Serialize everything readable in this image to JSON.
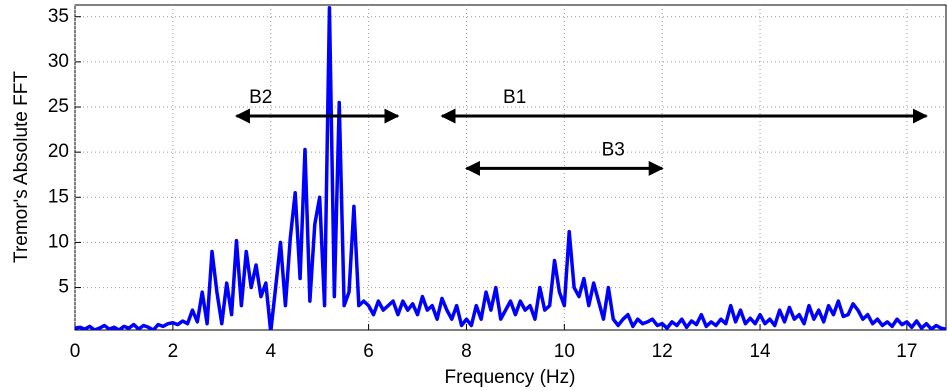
{
  "chart_data": {
    "type": "line",
    "xlabel": "Frequency (Hz)",
    "ylabel": "Tremor's Absolute FFT",
    "x": [
      0,
      0.1,
      0.2,
      0.3,
      0.4,
      0.5,
      0.6,
      0.7,
      0.8,
      0.9,
      1,
      1.1,
      1.2,
      1.3,
      1.4,
      1.5,
      1.6,
      1.7,
      1.8,
      1.9,
      2,
      2.1,
      2.2,
      2.3,
      2.4,
      2.5,
      2.6,
      2.7,
      2.8,
      2.9,
      3,
      3.1,
      3.2,
      3.3,
      3.4,
      3.5,
      3.6,
      3.7,
      3.8,
      3.9,
      4,
      4.1,
      4.2,
      4.3,
      4.4,
      4.5,
      4.6,
      4.7,
      4.8,
      4.9,
      5,
      5.1,
      5.2,
      5.3,
      5.4,
      5.5,
      5.6,
      5.7,
      5.8,
      5.9,
      6,
      6.1,
      6.2,
      6.3,
      6.4,
      6.5,
      6.6,
      6.7,
      6.8,
      6.9,
      7,
      7.1,
      7.2,
      7.3,
      7.4,
      7.5,
      7.6,
      7.7,
      7.8,
      7.9,
      8,
      8.1,
      8.2,
      8.3,
      8.4,
      8.5,
      8.6,
      8.7,
      8.8,
      8.9,
      9,
      9.1,
      9.2,
      9.3,
      9.4,
      9.5,
      9.6,
      9.7,
      9.8,
      9.9,
      10,
      10.1,
      10.2,
      10.3,
      10.4,
      10.5,
      10.6,
      10.7,
      10.8,
      10.9,
      11,
      11.1,
      11.2,
      11.3,
      11.4,
      11.5,
      11.6,
      11.7,
      11.8,
      11.9,
      12,
      12.1,
      12.2,
      12.3,
      12.4,
      12.5,
      12.6,
      12.7,
      12.8,
      12.9,
      13,
      13.1,
      13.2,
      13.3,
      13.4,
      13.5,
      13.6,
      13.7,
      13.8,
      13.9,
      14,
      14.1,
      14.2,
      14.3,
      14.4,
      14.5,
      14.6,
      14.7,
      14.8,
      14.9,
      15,
      15.1,
      15.2,
      15.3,
      15.4,
      15.5,
      15.6,
      15.7,
      15.8,
      15.9,
      16,
      16.1,
      16.2,
      16.3,
      16.4,
      16.5,
      16.6,
      16.7,
      16.8,
      16.9,
      17,
      17.1,
      17.2,
      17.3,
      17.4,
      17.5,
      17.6,
      17.7,
      17.8
    ],
    "series": [
      {
        "color": "#0000ff",
        "values": [
          0.5,
          0.6,
          0.4,
          0.7,
          0.3,
          0.5,
          0.8,
          0.4,
          0.6,
          0.3,
          0.7,
          0.5,
          0.9,
          0.4,
          0.8,
          0.6,
          0.3,
          0.9,
          0.7,
          1.0,
          1.1,
          0.9,
          1.3,
          1.0,
          2.5,
          1.2,
          4.5,
          1.0,
          9.0,
          4.5,
          1.0,
          5.5,
          2.0,
          10.2,
          3.0,
          9.0,
          5.0,
          7.5,
          4.0,
          5.5,
          0.1,
          5.0,
          10.0,
          3.0,
          10.5,
          15.5,
          6,
          20.3,
          3.5,
          12,
          15,
          3,
          36,
          4,
          25.5,
          3,
          4.5,
          14,
          3,
          3.5,
          3,
          2,
          3.5,
          2.5,
          3,
          3.5,
          2,
          3.5,
          2.5,
          3.2,
          2,
          4,
          2.5,
          3,
          1.5,
          3.8,
          2.5,
          1.5,
          3,
          0.8,
          1.5,
          0.8,
          3,
          1.5,
          4.5,
          2.5,
          5,
          1.5,
          2.5,
          3.5,
          2,
          3.5,
          2.5,
          3,
          1.5,
          5,
          2.5,
          3,
          8,
          4.5,
          3,
          11.2,
          5,
          4,
          6,
          3,
          5.5,
          3.5,
          1.5,
          5,
          1.5,
          0.8,
          1.5,
          2,
          0.7,
          1.5,
          1,
          1.2,
          1.5,
          0.8,
          1,
          0.5,
          1.2,
          0.8,
          1.5,
          0.6,
          1.3,
          0.9,
          2,
          0.7,
          1.2,
          0.8,
          1.5,
          1,
          3,
          1.2,
          2.5,
          1,
          1.6,
          1,
          2,
          1,
          1.5,
          0.8,
          2.5,
          1.2,
          2.8,
          1.5,
          2,
          1,
          3,
          1.5,
          2.5,
          1.2,
          3,
          2,
          3.5,
          1.8,
          2,
          3.2,
          2.5,
          1.5,
          2,
          1,
          1.5,
          0.8,
          1.2,
          0.7,
          1.5,
          0.9,
          1.2,
          0.6,
          1.3,
          0.5,
          1,
          0.4,
          0.8,
          0.5,
          0.4
        ]
      }
    ],
    "xlim": [
      0,
      17.8
    ],
    "ylim": [
      0.3,
      36.3
    ],
    "xticks": [
      0,
      2,
      4,
      6,
      8,
      10,
      12,
      14,
      17
    ],
    "yticks": [
      5,
      10,
      15,
      20,
      25,
      30,
      35
    ],
    "grid": true,
    "annotations": [
      {
        "text": "B2",
        "x": [
          3.3,
          6.6
        ],
        "y": 24
      },
      {
        "text": "B1",
        "x": [
          7.5,
          17.4
        ],
        "y": 24
      },
      {
        "text": "B3",
        "x": [
          8,
          12
        ],
        "y": 18.2
      }
    ]
  }
}
